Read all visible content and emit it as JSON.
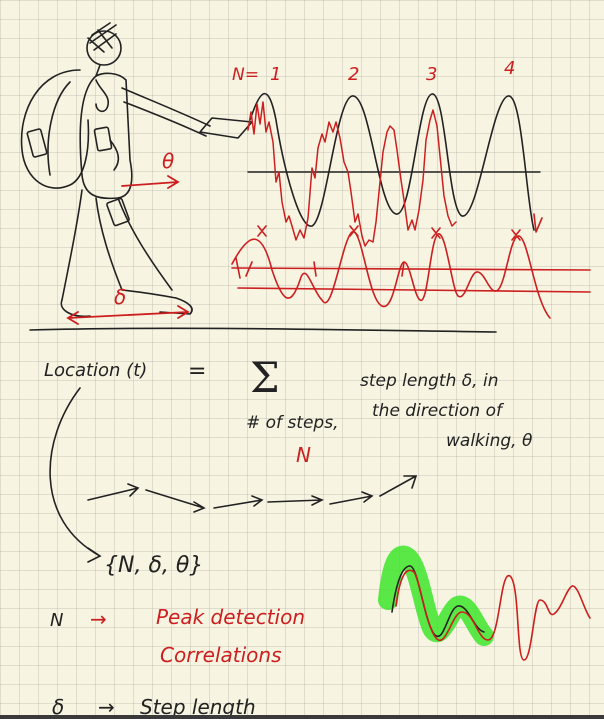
{
  "colors": {
    "ink": "#222222",
    "red": "#cc1f1f",
    "highlight": "#3ee52b",
    "paper": "#f8f4e2"
  },
  "step_labels": {
    "n_prefix": "N=",
    "steps": [
      "1",
      "2",
      "3",
      "4"
    ]
  },
  "figure_labels": {
    "theta": "θ",
    "delta": "δ"
  },
  "equation": {
    "lhs": "Location (t)",
    "equals": "=",
    "sum_symbol": "Σ",
    "sum_sub_1": "# of steps,",
    "sum_sub_2": "N",
    "desc_1": "step length δ, in",
    "desc_2": "the direction of",
    "desc_3": "walking, θ"
  },
  "tuple": "{N, δ, θ}",
  "notes": [
    {
      "symbol": "N",
      "arrow": "→",
      "text": "Peak detection"
    },
    {
      "symbol": "",
      "arrow": "",
      "text": "Correlations"
    },
    {
      "symbol": "δ",
      "arrow": "→",
      "text": "Step length"
    }
  ],
  "icons": [
    "walking-person-icon",
    "phone-icon",
    "arrow-icon"
  ]
}
